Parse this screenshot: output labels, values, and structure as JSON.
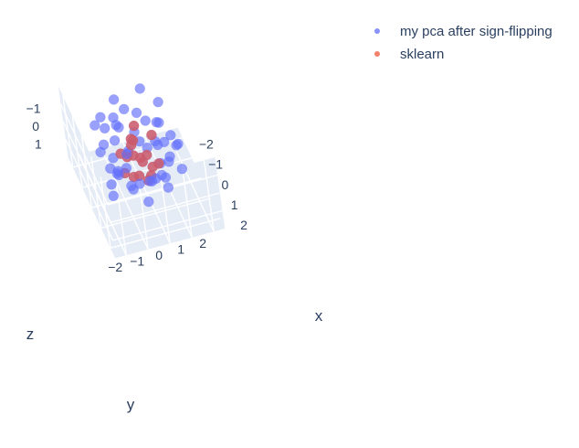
{
  "chart_data": {
    "type": "scatter",
    "title": "",
    "legend": {
      "placement": "top-right",
      "entries": [
        "my pca after sign-flipping",
        "sklearn"
      ]
    },
    "series": [
      {
        "name": "my pca after sign-flipping",
        "color": "#636efa",
        "points": [
          {
            "x": -0.8,
            "y": -0.6,
            "z": 1.6
          },
          {
            "x": -1.5,
            "y": -0.1,
            "z": 1.3
          },
          {
            "x": -0.3,
            "y": 0.4,
            "z": 1.5
          },
          {
            "x": -1.2,
            "y": -0.9,
            "z": 1.1
          },
          {
            "x": -0.6,
            "y": 0.2,
            "z": 1.0
          },
          {
            "x": -0.2,
            "y": -0.4,
            "z": 1.2
          },
          {
            "x": -1.0,
            "y": 0.6,
            "z": 0.8
          },
          {
            "x": -0.4,
            "y": -1.0,
            "z": 0.9
          },
          {
            "x": 0.2,
            "y": 0.1,
            "z": 1.1
          },
          {
            "x": -0.9,
            "y": -0.3,
            "z": 0.7
          },
          {
            "x": 0.5,
            "y": -0.7,
            "z": 1.0
          },
          {
            "x": -1.6,
            "y": 0.3,
            "z": 0.5
          },
          {
            "x": 0.0,
            "y": 0.8,
            "z": 0.6
          },
          {
            "x": -0.5,
            "y": -0.2,
            "z": 0.4
          },
          {
            "x": 0.3,
            "y": -0.3,
            "z": 0.6
          },
          {
            "x": -1.3,
            "y": -0.7,
            "z": 0.3
          },
          {
            "x": 0.7,
            "y": 0.3,
            "z": 0.5
          },
          {
            "x": -0.7,
            "y": 0.9,
            "z": 0.2
          },
          {
            "x": 0.1,
            "y": -1.2,
            "z": 0.4
          },
          {
            "x": -0.2,
            "y": 0.3,
            "z": 0.2
          },
          {
            "x": 0.9,
            "y": -0.5,
            "z": 0.3
          },
          {
            "x": -1.8,
            "y": -0.4,
            "z": 0.1
          },
          {
            "x": -0.4,
            "y": 1.2,
            "z": 0.0
          },
          {
            "x": 0.4,
            "y": 0.6,
            "z": 0.1
          },
          {
            "x": -1.0,
            "y": -1.3,
            "z": 0.0
          },
          {
            "x": 1.1,
            "y": 0.0,
            "z": 0.1
          },
          {
            "x": -0.1,
            "y": -0.6,
            "z": -0.1
          },
          {
            "x": 0.6,
            "y": 1.0,
            "z": -0.1
          },
          {
            "x": -1.4,
            "y": 0.8,
            "z": -0.2
          },
          {
            "x": 0.2,
            "y": -1.5,
            "z": -0.1
          },
          {
            "x": 1.3,
            "y": -1.0,
            "z": -0.2
          },
          {
            "x": -0.6,
            "y": -0.1,
            "z": -0.3
          },
          {
            "x": 0.8,
            "y": 0.2,
            "z": -0.3
          },
          {
            "x": -2.0,
            "y": 0.1,
            "z": -0.4
          },
          {
            "x": -0.3,
            "y": 1.5,
            "z": -0.4
          },
          {
            "x": 0.0,
            "y": -0.9,
            "z": -0.5
          },
          {
            "x": 1.5,
            "y": 0.5,
            "z": -0.4
          },
          {
            "x": -1.1,
            "y": -0.5,
            "z": -0.6
          },
          {
            "x": 0.5,
            "y": -0.2,
            "z": -0.6
          },
          {
            "x": -0.8,
            "y": 1.1,
            "z": -0.7
          },
          {
            "x": 1.0,
            "y": -1.4,
            "z": -0.6
          },
          {
            "x": 0.3,
            "y": 0.7,
            "z": -0.8
          },
          {
            "x": -1.6,
            "y": -1.1,
            "z": -0.8
          },
          {
            "x": 1.8,
            "y": -0.3,
            "z": -0.8
          },
          {
            "x": -0.2,
            "y": -0.3,
            "z": -0.9
          },
          {
            "x": 0.7,
            "y": 1.4,
            "z": -1.0
          },
          {
            "x": -1.2,
            "y": 0.4,
            "z": -1.0
          },
          {
            "x": 0.1,
            "y": -1.8,
            "z": -1.0
          },
          {
            "x": 1.2,
            "y": 0.9,
            "z": -1.1
          },
          {
            "x": -0.5,
            "y": 0.0,
            "z": -1.2
          },
          {
            "x": 2.0,
            "y": 0.2,
            "z": -1.2
          },
          {
            "x": -0.9,
            "y": -1.6,
            "z": -1.3
          },
          {
            "x": 0.4,
            "y": -0.5,
            "z": -1.3
          },
          {
            "x": -1.9,
            "y": 0.9,
            "z": -1.4
          },
          {
            "x": 0.9,
            "y": -0.9,
            "z": -1.5
          },
          {
            "x": -0.1,
            "y": 1.0,
            "z": -1.5
          },
          {
            "x": 1.6,
            "y": -1.2,
            "z": -1.6
          },
          {
            "x": -0.7,
            "y": -0.8,
            "z": -1.7
          },
          {
            "x": 0.6,
            "y": 0.4,
            "z": -1.8
          },
          {
            "x": -0.3,
            "y": -1.4,
            "z": 1.4
          },
          {
            "x": -1.7,
            "y": 0.5,
            "z": 1.2
          },
          {
            "x": 1.0,
            "y": 0.7,
            "z": 0.8
          },
          {
            "x": 0.8,
            "y": -1.7,
            "z": 0.7
          },
          {
            "x": -2.2,
            "y": -0.8,
            "z": 0.6
          },
          {
            "x": 2.2,
            "y": -0.6,
            "z": -0.2
          },
          {
            "x": -0.4,
            "y": 1.8,
            "z": 0.3
          },
          {
            "x": 1.4,
            "y": 1.3,
            "z": -0.5
          },
          {
            "x": -1.5,
            "y": 1.5,
            "z": -0.9
          },
          {
            "x": -2.3,
            "y": -0.2,
            "z": -0.7
          }
        ]
      },
      {
        "name": "sklearn",
        "color": "#ef553b",
        "points": [
          {
            "x": -0.8,
            "y": -0.6,
            "z": 1.6
          },
          {
            "x": -0.3,
            "y": 0.4,
            "z": 1.5
          },
          {
            "x": -0.6,
            "y": 0.2,
            "z": 1.0
          },
          {
            "x": -0.2,
            "y": -0.4,
            "z": 1.2
          },
          {
            "x": 0.2,
            "y": 0.1,
            "z": 1.1
          },
          {
            "x": -0.5,
            "y": -0.2,
            "z": 0.4
          },
          {
            "x": 0.3,
            "y": -0.3,
            "z": 0.6
          },
          {
            "x": -0.2,
            "y": 0.3,
            "z": 0.2
          },
          {
            "x": 0.4,
            "y": 0.6,
            "z": 0.1
          },
          {
            "x": -0.1,
            "y": -0.6,
            "z": -0.1
          },
          {
            "x": 0.8,
            "y": 0.2,
            "z": -0.3
          },
          {
            "x": -0.6,
            "y": -0.1,
            "z": -0.3
          },
          {
            "x": 0.5,
            "y": -0.2,
            "z": -0.6
          },
          {
            "x": -0.2,
            "y": -0.3,
            "z": -0.9
          },
          {
            "x": 0.0,
            "y": -0.9,
            "z": -0.5
          },
          {
            "x": -0.5,
            "y": 0.0,
            "z": -1.2
          },
          {
            "x": 0.6,
            "y": 0.4,
            "z": -1.8
          },
          {
            "x": 0.4,
            "y": -0.5,
            "z": -1.3
          }
        ]
      }
    ],
    "axes": {
      "x": {
        "label": "x",
        "range": [
          -2.5,
          2.5
        ],
        "ticks": [
          -2,
          -1,
          0,
          1,
          2
        ],
        "tick_labels": [
          "−2",
          "−1",
          "0",
          "1",
          "2"
        ]
      },
      "y": {
        "label": "y",
        "range": [
          -2.5,
          2.5
        ],
        "ticks": [
          -2,
          -1,
          0,
          1,
          2
        ],
        "tick_labels": [
          "−2",
          "−1",
          "0",
          "1",
          "2"
        ]
      },
      "z": {
        "label": "z",
        "range": [
          -2,
          2
        ],
        "ticks": [
          -1,
          0,
          1
        ],
        "tick_labels": [
          "−1",
          "0",
          "1"
        ]
      }
    },
    "grid": true,
    "colors": {
      "pane": "#e5ecf6",
      "grid": "#ffffff",
      "text": "#2a3f5f"
    }
  }
}
